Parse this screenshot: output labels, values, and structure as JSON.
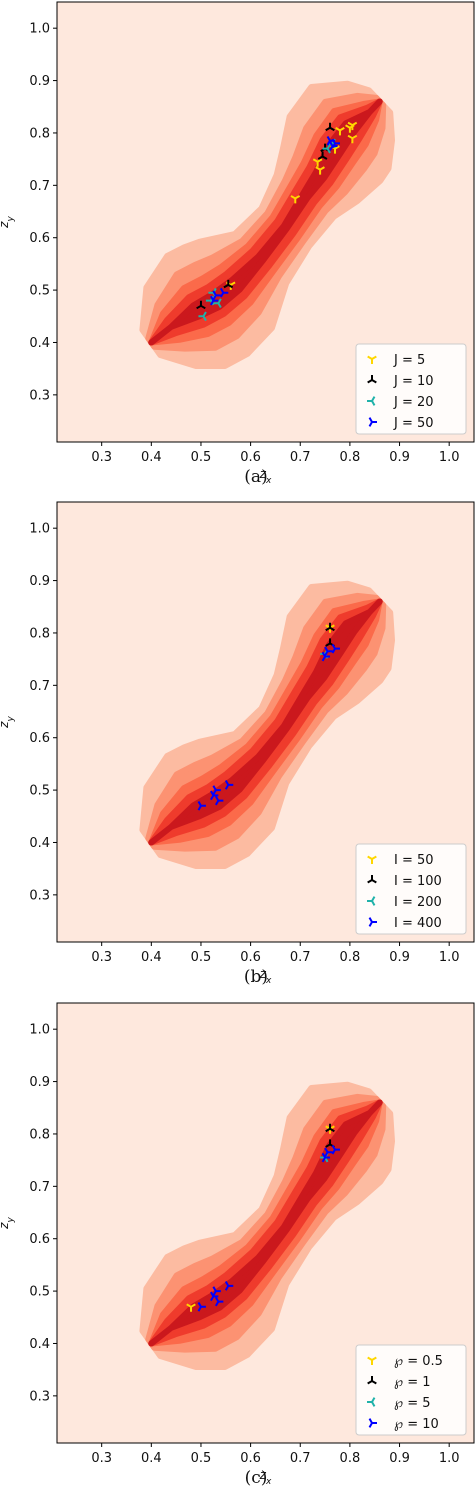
{
  "chart_data": [
    {
      "type": "scatter",
      "caption": "(a)",
      "xlabel": "z_x",
      "ylabel": "z_y",
      "xlim": [
        0.21,
        1.05
      ],
      "ylim": [
        0.21,
        1.05
      ],
      "xticks": [
        "0.3",
        "0.4",
        "0.5",
        "0.6",
        "0.7",
        "0.8",
        "0.9",
        "1.0"
      ],
      "yticks": [
        "0.3",
        "0.4",
        "0.5",
        "0.6",
        "0.7",
        "0.8",
        "0.9",
        "1.0"
      ],
      "background": "density contours (KDE)",
      "legend_position": "lower right",
      "series": [
        {
          "name": "J = 5",
          "color": "#ffd700",
          "marker": "tri_down",
          "points": [
            [
              0.56,
              0.51
            ],
            [
              0.69,
              0.675
            ],
            [
              0.735,
              0.745
            ],
            [
              0.74,
              0.73
            ],
            [
              0.77,
              0.77
            ],
            [
              0.78,
              0.805
            ],
            [
              0.8,
              0.81
            ],
            [
              0.805,
              0.815
            ],
            [
              0.805,
              0.79
            ]
          ]
        },
        {
          "name": "J = 10",
          "color": "#000000",
          "marker": "tri_up",
          "points": [
            [
              0.5,
              0.47
            ],
            [
              0.555,
              0.51
            ],
            [
              0.745,
              0.755
            ],
            [
              0.76,
              0.81
            ],
            [
              0.75,
              0.77
            ]
          ]
        },
        {
          "name": "J = 20",
          "color": "#20b2aa",
          "marker": "tri_left",
          "points": [
            [
              0.505,
              0.45
            ],
            [
              0.52,
              0.48
            ],
            [
              0.525,
              0.495
            ],
            [
              0.535,
              0.475
            ],
            [
              0.755,
              0.77
            ],
            [
              0.765,
              0.78
            ]
          ]
        },
        {
          "name": "J = 50",
          "color": "#0000ff",
          "marker": "tri_right",
          "points": [
            [
              0.525,
              0.48
            ],
            [
              0.53,
              0.49
            ],
            [
              0.545,
              0.495
            ],
            [
              0.76,
              0.785
            ],
            [
              0.77,
              0.78
            ],
            [
              0.765,
              0.775
            ]
          ]
        }
      ]
    },
    {
      "type": "scatter",
      "caption": "(b)",
      "xlabel": "z_x",
      "ylabel": "z_y",
      "xlim": [
        0.21,
        1.05
      ],
      "ylim": [
        0.21,
        1.05
      ],
      "xticks": [
        "0.3",
        "0.4",
        "0.5",
        "0.6",
        "0.7",
        "0.8",
        "0.9",
        "1.0"
      ],
      "yticks": [
        "0.3",
        "0.4",
        "0.5",
        "0.6",
        "0.7",
        "0.8",
        "0.9",
        "1.0"
      ],
      "background": "density contours (KDE)",
      "legend_position": "lower right",
      "series": [
        {
          "name": "I = 50",
          "color": "#ffd700",
          "marker": "tri_down",
          "points": [
            [
              0.76,
              0.81
            ]
          ]
        },
        {
          "name": "I = 100",
          "color": "#000000",
          "marker": "tri_up",
          "points": [
            [
              0.76,
              0.81
            ],
            [
              0.76,
              0.78
            ]
          ]
        },
        {
          "name": "I = 200",
          "color": "#20b2aa",
          "marker": "tri_left",
          "points": [
            [
              0.75,
              0.76
            ]
          ]
        },
        {
          "name": "I = 400",
          "color": "#0000ff",
          "marker": "tri_right",
          "points": [
            [
              0.5,
              0.47
            ],
            [
              0.525,
              0.49
            ],
            [
              0.53,
              0.5
            ],
            [
              0.535,
              0.48
            ],
            [
              0.555,
              0.51
            ],
            [
              0.75,
              0.755
            ],
            [
              0.755,
              0.765
            ],
            [
              0.77,
              0.77
            ]
          ]
        }
      ]
    },
    {
      "type": "scatter",
      "caption": "(c)",
      "xlabel": "z_x",
      "ylabel": "z_y",
      "xlim": [
        0.21,
        1.05
      ],
      "ylim": [
        0.21,
        1.05
      ],
      "xticks": [
        "0.3",
        "0.4",
        "0.5",
        "0.6",
        "0.7",
        "0.8",
        "0.9",
        "1.0"
      ],
      "yticks": [
        "0.3",
        "0.4",
        "0.5",
        "0.6",
        "0.7",
        "0.8",
        "0.9",
        "1.0"
      ],
      "background": "density contours (KDE)",
      "legend_position": "lower right",
      "series": [
        {
          "name": "℘ = 0.5",
          "color": "#ffd700",
          "marker": "tri_down",
          "points": [
            [
              0.48,
              0.47
            ],
            [
              0.76,
              0.81
            ]
          ]
        },
        {
          "name": "℘ = 1",
          "color": "#000000",
          "marker": "tri_up",
          "points": [
            [
              0.76,
              0.81
            ],
            [
              0.76,
              0.78
            ]
          ]
        },
        {
          "name": "℘ = 5",
          "color": "#20b2aa",
          "marker": "tri_left",
          "points": [
            [
              0.75,
              0.755
            ]
          ]
        },
        {
          "name": "℘ = 10",
          "color": "#0000ff",
          "marker": "tri_right",
          "points": [
            [
              0.5,
              0.47
            ],
            [
              0.525,
              0.49
            ],
            [
              0.53,
              0.5
            ],
            [
              0.535,
              0.48
            ],
            [
              0.555,
              0.51
            ],
            [
              0.75,
              0.755
            ],
            [
              0.755,
              0.765
            ],
            [
              0.77,
              0.77
            ]
          ]
        }
      ]
    }
  ]
}
